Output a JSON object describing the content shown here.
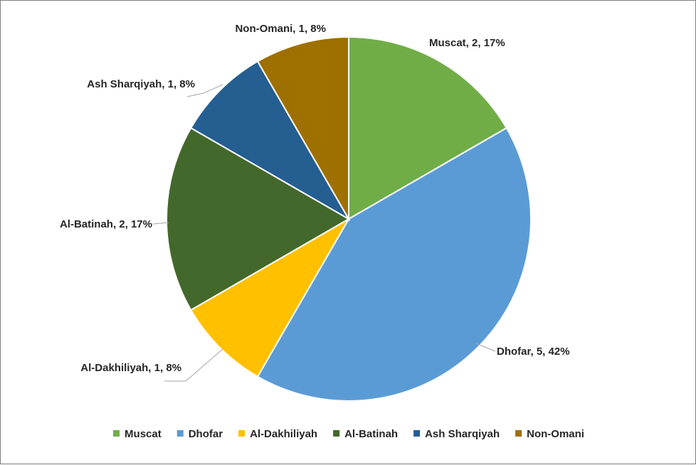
{
  "chart_data": {
    "type": "pie",
    "title": "",
    "categories": [
      "Muscat",
      "Dhofar",
      "Al-Dakhiliyah",
      "Al-Batinah",
      "Ash Sharqiyah",
      "Non-Omani"
    ],
    "values": [
      2,
      5,
      1,
      2,
      1,
      1
    ],
    "percent_labels": [
      "17%",
      "42%",
      "8%",
      "17%",
      "8%",
      "8%"
    ],
    "data_labels": [
      "Muscat, 2, 17%",
      "Dhofar, 5, 42%",
      "Al-Dakhiliyah, 1, 8%",
      "Al-Batinah, 2, 17%",
      "Ash Sharqiyah, 1, 8%",
      "Non-Omani, 1, 8%"
    ],
    "colors": [
      "#70ad47",
      "#5b9bd5",
      "#ffc000",
      "#43682b",
      "#255e91",
      "#9e7000"
    ],
    "start_angle": "12 o'clock",
    "direction": "clockwise",
    "legend_position": "bottom"
  }
}
